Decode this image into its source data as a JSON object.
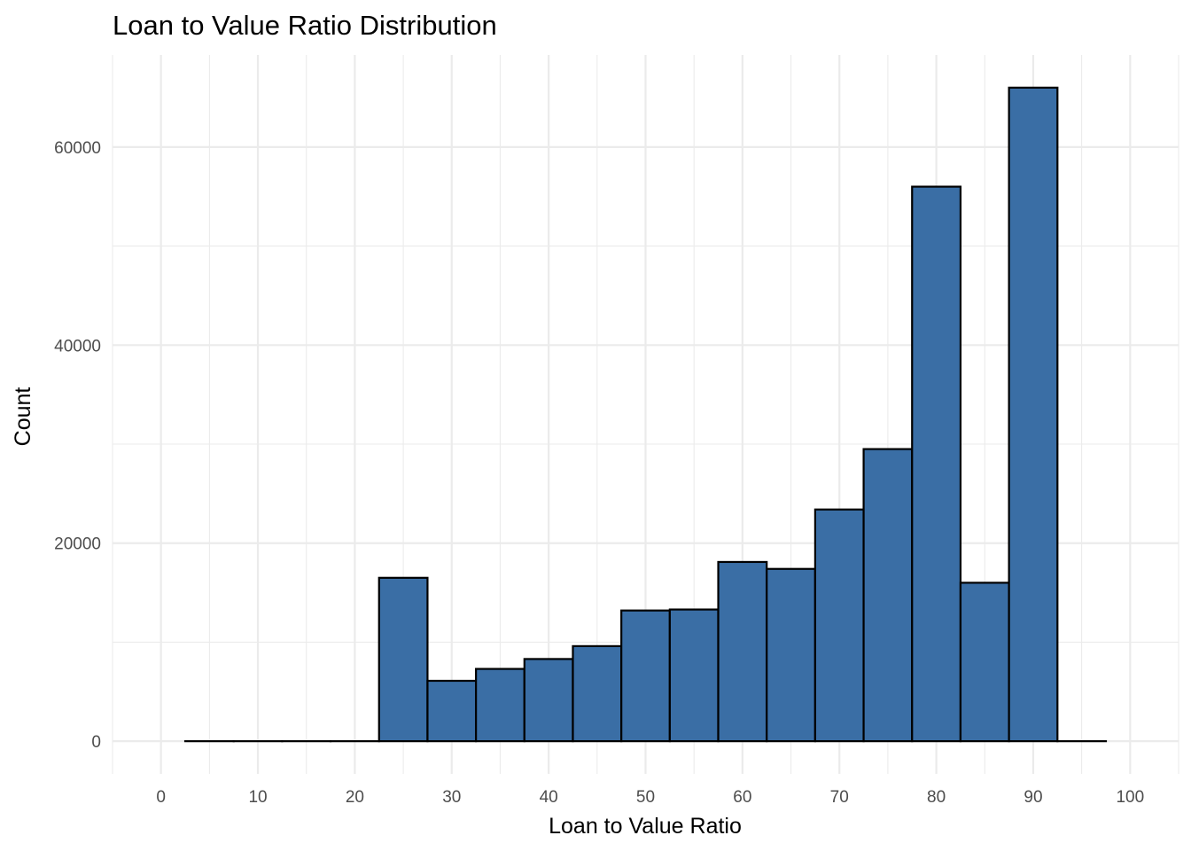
{
  "chart_data": {
    "type": "bar",
    "title": "Loan to Value Ratio Distribution",
    "xlabel": "Loan to Value Ratio",
    "ylabel": "Count",
    "bin_width": 5,
    "bins": [
      {
        "center": 5,
        "value": 0
      },
      {
        "center": 10,
        "value": 0
      },
      {
        "center": 15,
        "value": 0
      },
      {
        "center": 20,
        "value": 0
      },
      {
        "center": 25,
        "value": 16500
      },
      {
        "center": 30,
        "value": 6100
      },
      {
        "center": 35,
        "value": 7300
      },
      {
        "center": 40,
        "value": 8300
      },
      {
        "center": 45,
        "value": 9600
      },
      {
        "center": 50,
        "value": 13200
      },
      {
        "center": 55,
        "value": 13300
      },
      {
        "center": 60,
        "value": 18100
      },
      {
        "center": 65,
        "value": 17400
      },
      {
        "center": 70,
        "value": 23400
      },
      {
        "center": 75,
        "value": 29500
      },
      {
        "center": 80,
        "value": 56000
      },
      {
        "center": 85,
        "value": 16000
      },
      {
        "center": 90,
        "value": 66000
      },
      {
        "center": 95,
        "value": 0
      }
    ],
    "x_ticks": [
      "0",
      "10",
      "20",
      "30",
      "40",
      "50",
      "60",
      "70",
      "80",
      "90",
      "100"
    ],
    "y_ticks": [
      "0",
      "20000",
      "40000",
      "60000"
    ],
    "xlim": [
      -5,
      105
    ],
    "ylim": [
      -3300,
      69300
    ],
    "grid": true,
    "legend": "none",
    "fill_color": "#3A6EA5",
    "edge_color": "#000000",
    "grid_color": "#EBEBEB"
  }
}
